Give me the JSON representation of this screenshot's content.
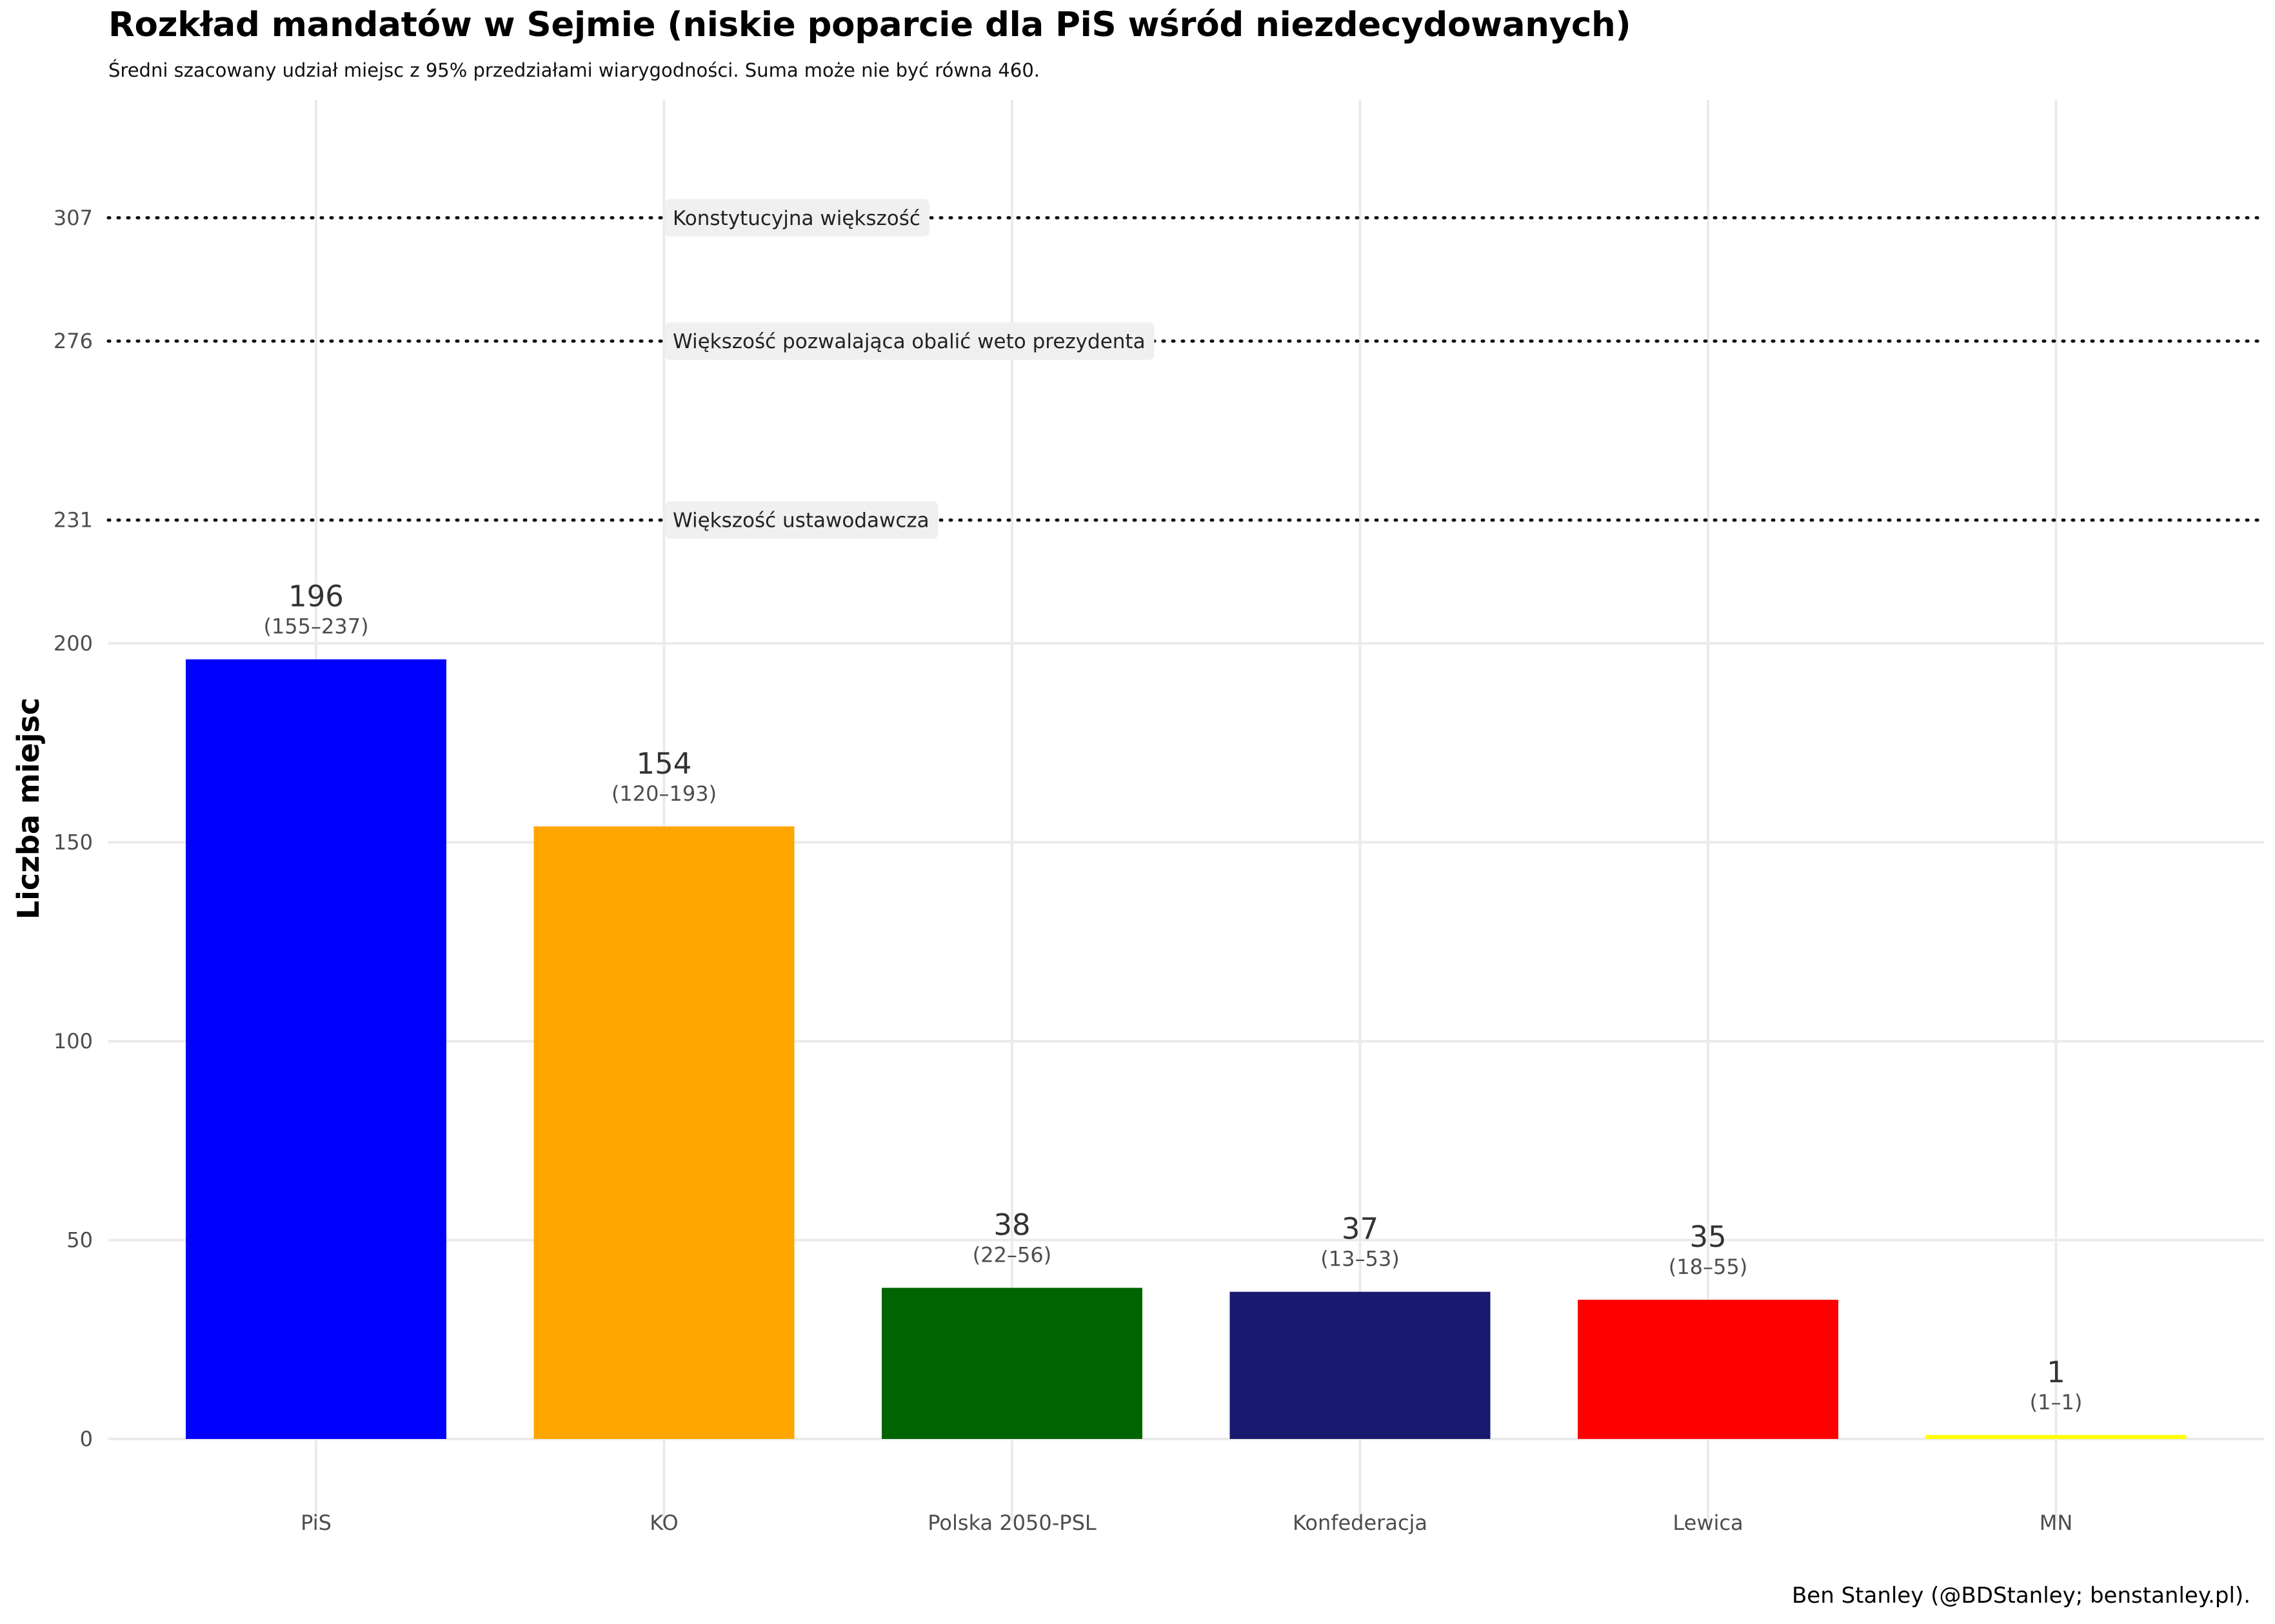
{
  "title": "Rozkład mandatów w Sejmie (niskie poparcie dla PiS wśród niezdecydowanych)",
  "subtitle": "Średni szacowany udział miejsc z 95% przedziałami wiarygodności. Suma może nie być równa 460.",
  "caption": "Ben Stanley (@BDStanley; benstanley.pl).",
  "chart_data": {
    "type": "bar",
    "title": "Rozkład mandatów w Sejmie (niskie poparcie dla PiS wśród niezdecydowanych)",
    "xlabel": "",
    "ylabel": "Liczba miejsc",
    "categories": [
      "PiS",
      "KO",
      "Polska 2050-PSL",
      "Konfederacja",
      "Lewica",
      "MN"
    ],
    "values": [
      196,
      154,
      38,
      37,
      35,
      1
    ],
    "intervals": [
      "(155–237)",
      "(120–193)",
      "(22–56)",
      "(13–53)",
      "(18–55)",
      "(1–1)"
    ],
    "colors": [
      "#0000ff",
      "#ffa500",
      "#006400",
      "#191970",
      "#ff0000",
      "#ffff00"
    ],
    "ylim": [
      0,
      336
    ],
    "yticks": [
      0,
      50,
      100,
      150,
      200,
      231,
      276,
      307
    ],
    "reference_lines": [
      {
        "value": 307,
        "label": "Konstytucyjna większość"
      },
      {
        "value": 276,
        "label": "Większość pozwalająca obalić weto prezydenta"
      },
      {
        "value": 231,
        "label": "Większość ustawodawcza"
      }
    ],
    "grid": true,
    "legend": "none"
  }
}
